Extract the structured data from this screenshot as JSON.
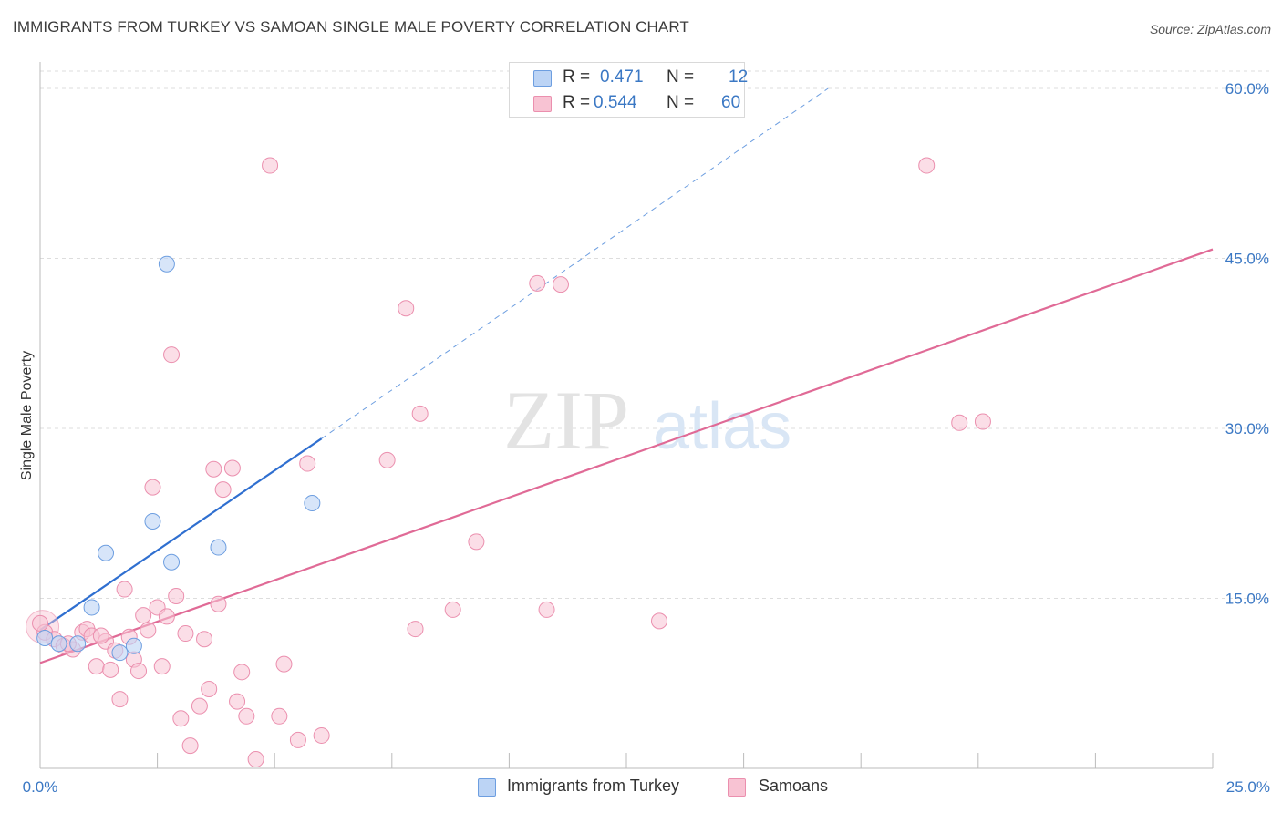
{
  "header": {
    "title": "IMMIGRANTS FROM TURKEY VS SAMOAN SINGLE MALE POVERTY CORRELATION CHART",
    "source": "Source: ZipAtlas.com"
  },
  "watermark": {
    "zip": "ZIP",
    "atlas": "atlas"
  },
  "legend_top": {
    "rows": [
      {
        "r_label": "R =",
        "r_value": "0.471",
        "n_label": "N =",
        "n_value": "12"
      },
      {
        "r_label": "R =",
        "r_value": "0.544",
        "n_label": "N =",
        "n_value": "60"
      }
    ]
  },
  "legend_bottom": {
    "items": [
      {
        "label": "Immigrants from Turkey"
      },
      {
        "label": "Samoans"
      }
    ]
  },
  "colors": {
    "blue_fill": "#bcd4f5",
    "blue_stroke": "#6d9ee0",
    "blue_line": "#2f6fd0",
    "pink_fill": "#f8c3d3",
    "pink_stroke": "#eb8fae",
    "pink_line": "#e06a96",
    "axis_label": "#3b78c4",
    "grid": "#dddddd"
  },
  "chart_data": {
    "type": "scatter",
    "title": "IMMIGRANTS FROM TURKEY VS SAMOAN SINGLE MALE POVERTY CORRELATION CHART",
    "xlabel": "",
    "ylabel": "Single Male Poverty",
    "xlim": [
      0,
      25
    ],
    "ylim": [
      0,
      60
    ],
    "x_tick_labels": [
      "0.0%",
      "25.0%"
    ],
    "y_ticks": [
      15,
      30,
      45,
      60
    ],
    "y_tick_labels": [
      "15.0%",
      "30.0%",
      "45.0%",
      "60.0%"
    ],
    "grid": true,
    "legend_position": "top-center",
    "series": [
      {
        "name": "Immigrants from Turkey",
        "color": "#6d9ee0",
        "points": [
          [
            0.1,
            11.5
          ],
          [
            0.4,
            11.0
          ],
          [
            0.8,
            11.0
          ],
          [
            1.1,
            14.2
          ],
          [
            1.4,
            19.0
          ],
          [
            1.7,
            10.2
          ],
          [
            2.0,
            10.8
          ],
          [
            2.4,
            21.8
          ],
          [
            2.7,
            44.5
          ],
          [
            2.8,
            18.2
          ],
          [
            3.8,
            19.5
          ],
          [
            5.8,
            23.4
          ]
        ],
        "trend": {
          "x": [
            0.0,
            6.0
          ],
          "y": [
            12.2,
            29.1
          ],
          "dashed_extension": {
            "x": [
              6.0,
              16.8
            ],
            "y": [
              29.1,
              60.0
            ]
          }
        }
      },
      {
        "name": "Samoans",
        "color": "#eb8fae",
        "points": [
          [
            0.1,
            12.0
          ],
          [
            0.3,
            11.4
          ],
          [
            0.5,
            10.8
          ],
          [
            0.7,
            10.5
          ],
          [
            0.9,
            12.0
          ],
          [
            1.0,
            12.3
          ],
          [
            1.1,
            11.7
          ],
          [
            1.2,
            9.0
          ],
          [
            1.4,
            11.2
          ],
          [
            1.5,
            8.7
          ],
          [
            1.6,
            10.4
          ],
          [
            1.7,
            6.1
          ],
          [
            1.8,
            15.8
          ],
          [
            1.9,
            11.6
          ],
          [
            2.0,
            9.6
          ],
          [
            2.1,
            8.6
          ],
          [
            2.2,
            13.5
          ],
          [
            2.3,
            12.2
          ],
          [
            2.4,
            24.8
          ],
          [
            2.5,
            14.2
          ],
          [
            2.6,
            9.0
          ],
          [
            2.7,
            13.4
          ],
          [
            2.8,
            36.5
          ],
          [
            2.9,
            15.2
          ],
          [
            3.0,
            4.4
          ],
          [
            3.1,
            11.9
          ],
          [
            3.2,
            2.0
          ],
          [
            3.4,
            5.5
          ],
          [
            3.5,
            11.4
          ],
          [
            3.6,
            7.0
          ],
          [
            3.7,
            26.4
          ],
          [
            3.8,
            14.5
          ],
          [
            3.9,
            24.6
          ],
          [
            4.1,
            26.5
          ],
          [
            4.2,
            5.9
          ],
          [
            4.3,
            8.5
          ],
          [
            4.4,
            4.6
          ],
          [
            4.6,
            0.8
          ],
          [
            4.9,
            53.2
          ],
          [
            5.1,
            4.6
          ],
          [
            5.2,
            9.2
          ],
          [
            5.5,
            2.5
          ],
          [
            5.7,
            26.9
          ],
          [
            6.0,
            2.9
          ],
          [
            7.4,
            27.2
          ],
          [
            7.8,
            40.6
          ],
          [
            8.0,
            12.3
          ],
          [
            8.1,
            31.3
          ],
          [
            8.8,
            14.0
          ],
          [
            9.3,
            20.0
          ],
          [
            10.6,
            42.8
          ],
          [
            10.8,
            14.0
          ],
          [
            11.1,
            42.7
          ],
          [
            13.2,
            13.0
          ],
          [
            18.9,
            53.2
          ],
          [
            19.6,
            30.5
          ],
          [
            20.1,
            30.6
          ],
          [
            0.0,
            12.8
          ],
          [
            0.6,
            11.0
          ],
          [
            1.3,
            11.7
          ]
        ],
        "trend": {
          "x": [
            0.0,
            25.0
          ],
          "y": [
            9.3,
            45.8
          ]
        }
      }
    ]
  }
}
